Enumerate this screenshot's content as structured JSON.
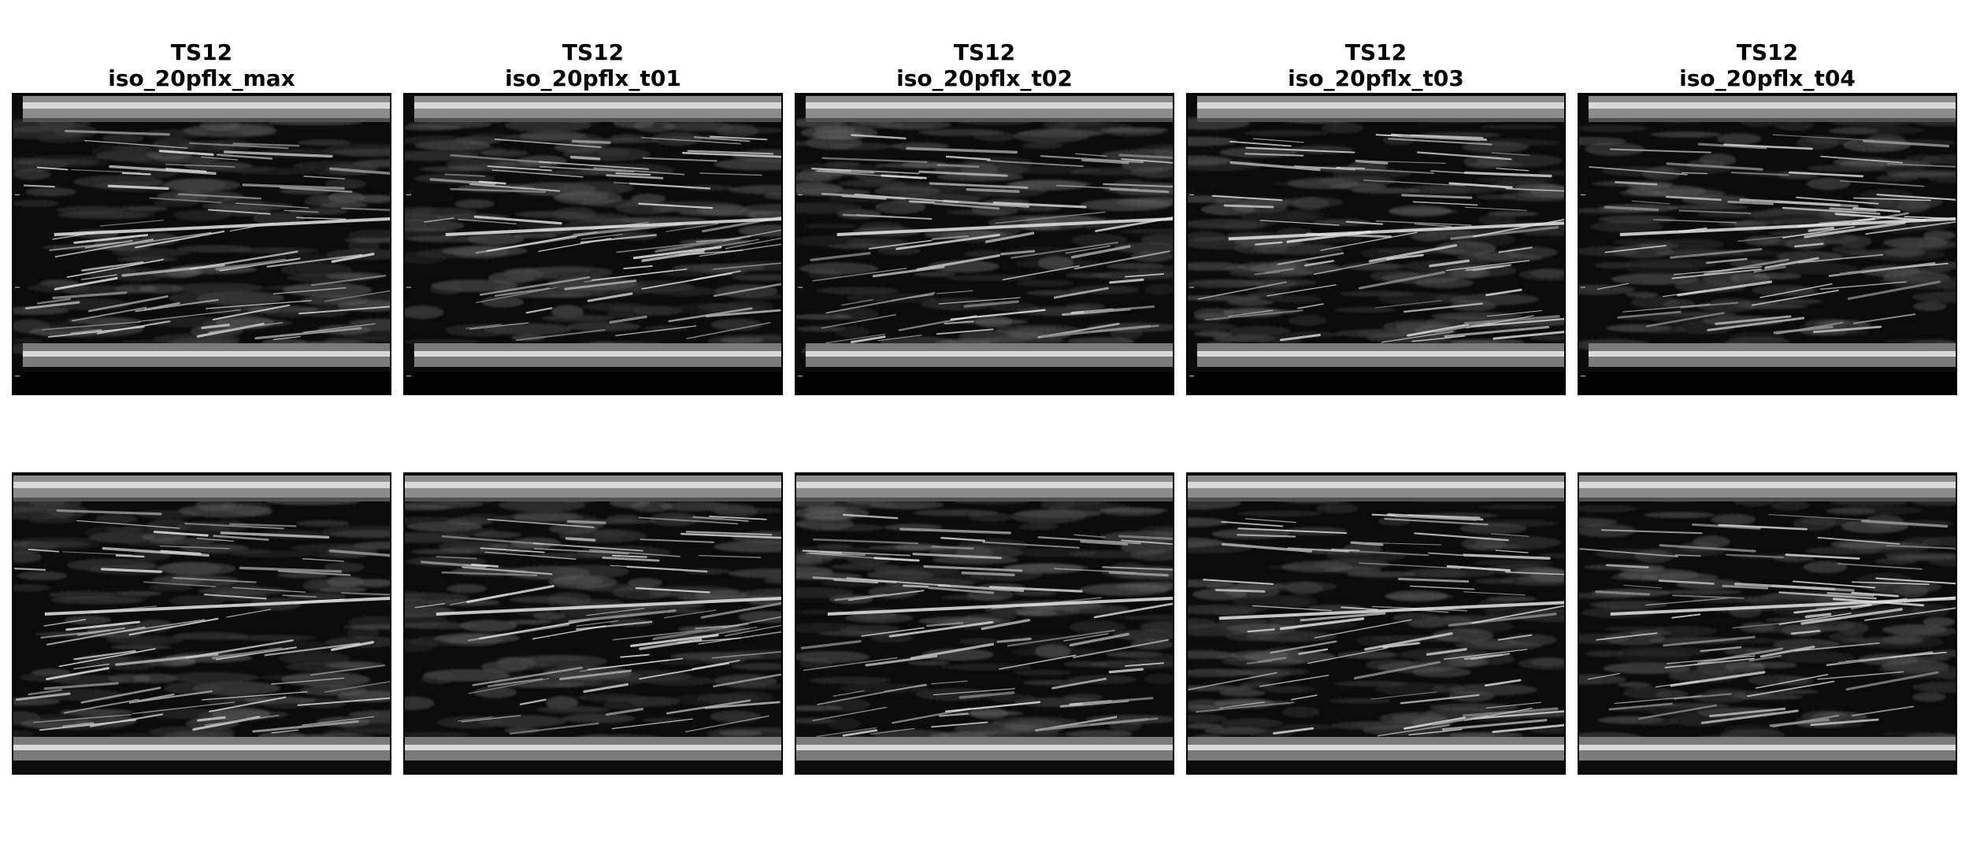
{
  "figure": {
    "columns": [
      {
        "title_line1": "TS12",
        "title_line2": "iso_20pflx_max",
        "variant": "max"
      },
      {
        "title_line1": "TS12",
        "title_line2": "iso_20pflx_t01",
        "variant": "t01"
      },
      {
        "title_line1": "TS12",
        "title_line2": "iso_20pflx_t02",
        "variant": "t02"
      },
      {
        "title_line1": "TS12",
        "title_line2": "iso_20pflx_t03",
        "variant": "t03"
      },
      {
        "title_line1": "TS12",
        "title_line2": "iso_20pflx_t04",
        "variant": "t04"
      }
    ],
    "rows": [
      {
        "name": "raw-ultrasound-row",
        "image": "ultrasound-muscle-image"
      },
      {
        "name": "processed-ultrasound-row",
        "image": "ultrasound-muscle-image-cropped"
      }
    ],
    "colors": {
      "background": "#ffffff",
      "image_dark": "#0b0b0b",
      "fascia": "#d9d9d9",
      "fibers": "#bfbfbf",
      "frame": "#000000"
    }
  }
}
